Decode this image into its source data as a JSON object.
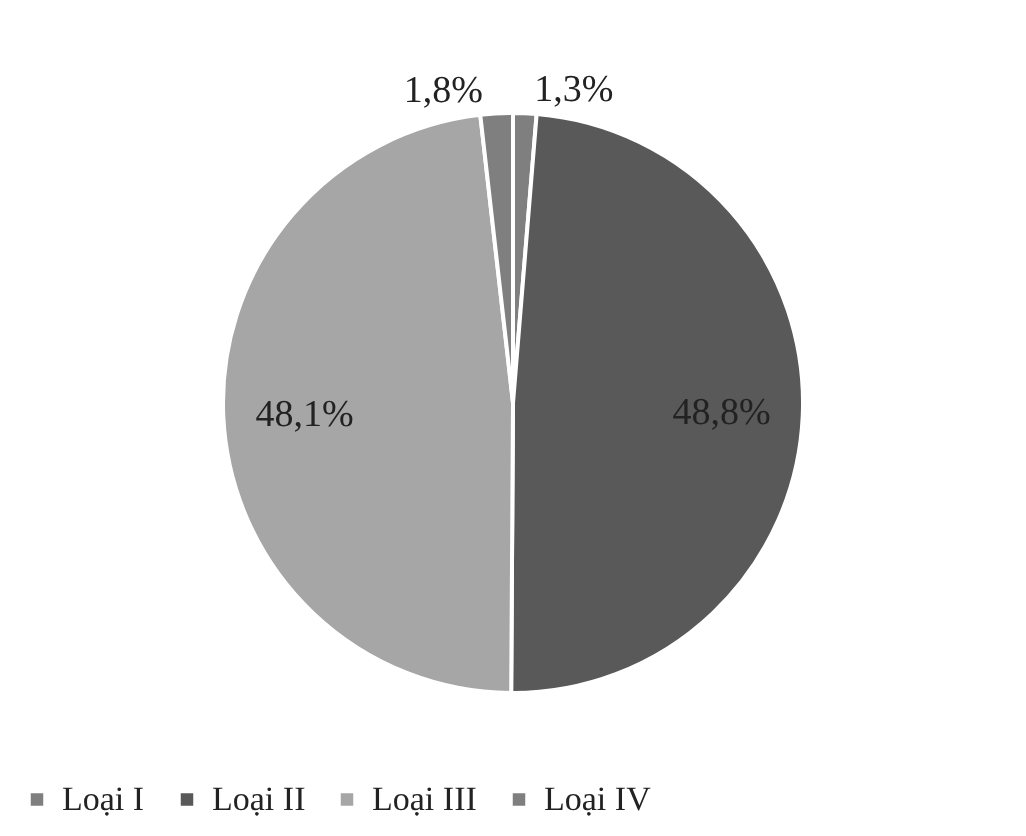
{
  "chart_data": {
    "type": "pie",
    "categories": [
      "Loại I",
      "Loại II",
      "Loại III",
      "Loại IV"
    ],
    "values": [
      1.3,
      48.8,
      48.1,
      1.8
    ],
    "colors": [
      "#7f7f7f",
      "#595959",
      "#a6a6a6",
      "#7f7f7f"
    ],
    "value_labels": [
      "1,3%",
      "48,8%",
      "48,1%",
      "1,8%"
    ],
    "legend": "bottom"
  }
}
